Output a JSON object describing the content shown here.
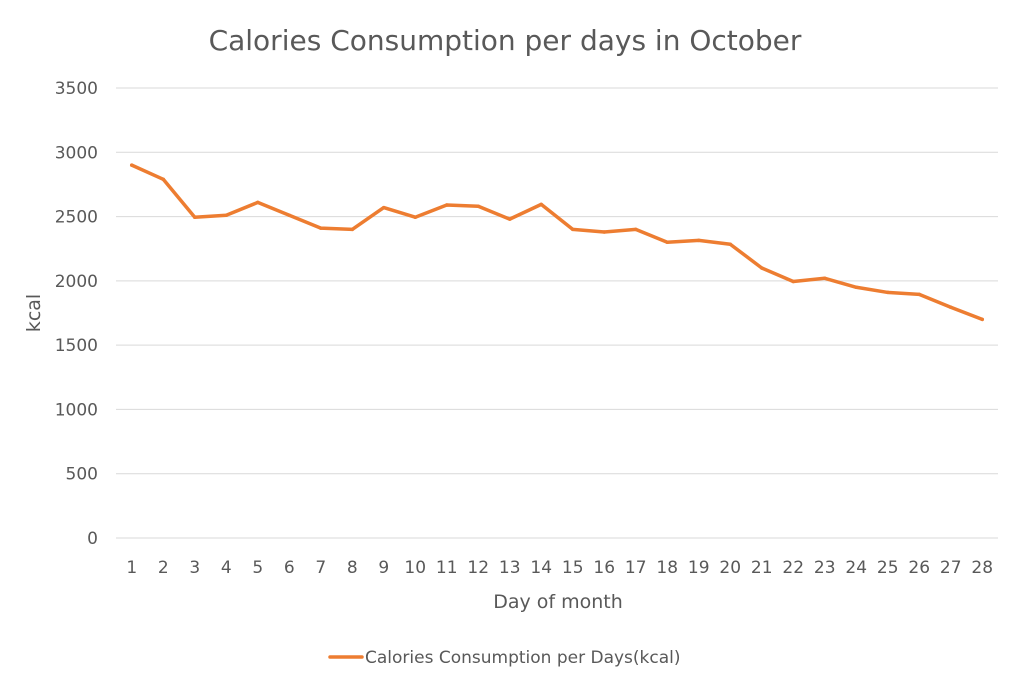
{
  "chart_data": {
    "type": "line",
    "title": "Calories Consumption per days in October",
    "xlabel": "Day of month",
    "ylabel": "kcal",
    "ylim": [
      0,
      3500
    ],
    "yticks": [
      0,
      500,
      1000,
      1500,
      2000,
      2500,
      3000,
      3500
    ],
    "grid": true,
    "legend_position": "bottom",
    "categories": [
      "1",
      "2",
      "3",
      "4",
      "5",
      "6",
      "7",
      "8",
      "9",
      "10",
      "11",
      "12",
      "13",
      "14",
      "15",
      "16",
      "17",
      "18",
      "19",
      "20",
      "21",
      "22",
      "23",
      "24",
      "25",
      "26",
      "27",
      "28"
    ],
    "series": [
      {
        "name": "Calories Consumption per Days(kcal)",
        "color": "#ed7d31",
        "values": [
          2900,
          2790,
          2495,
          2510,
          2610,
          2510,
          2410,
          2400,
          2570,
          2495,
          2590,
          2580,
          2480,
          2595,
          2400,
          2380,
          2400,
          2300,
          2315,
          2285,
          2100,
          1995,
          2020,
          1950,
          1910,
          1895,
          1795,
          1700
        ]
      }
    ]
  }
}
